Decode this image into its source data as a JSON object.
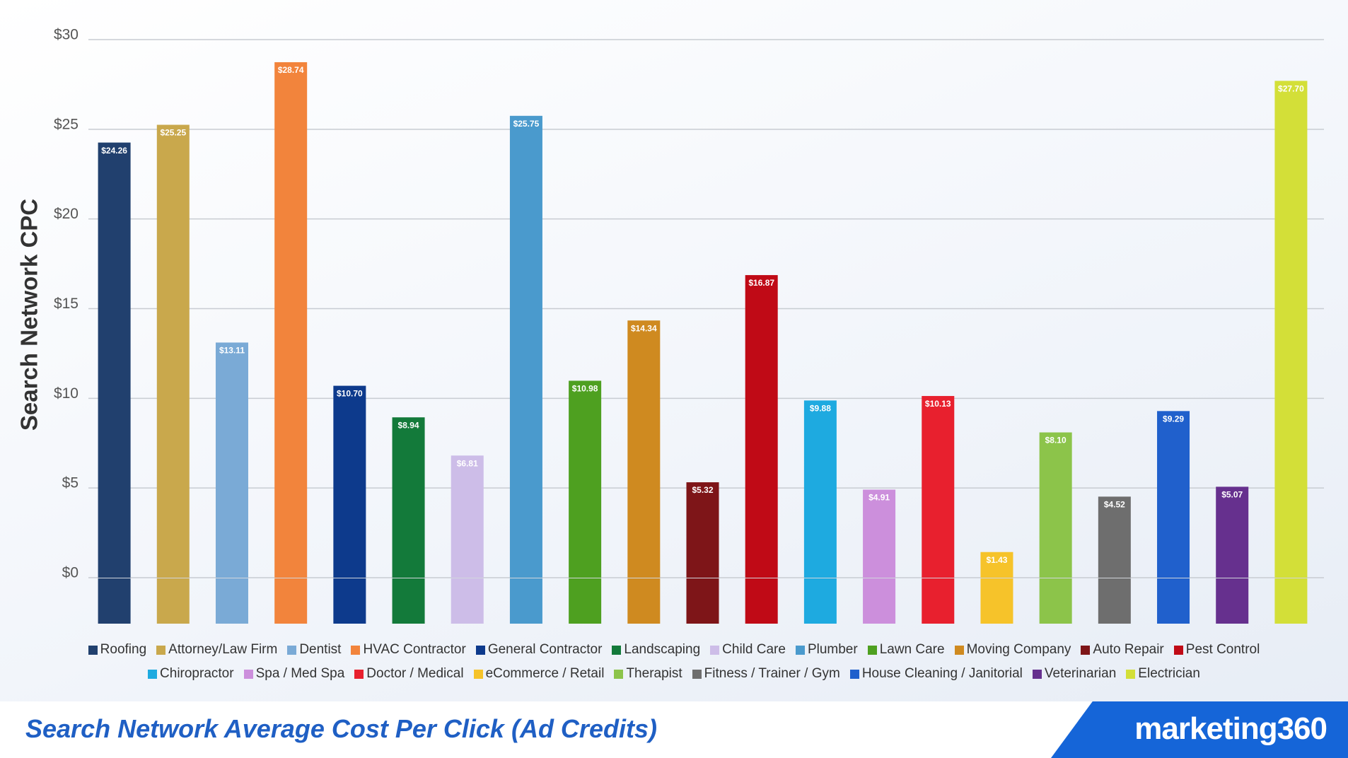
{
  "chart_data": {
    "type": "bar",
    "title": "Search Network Average Cost Per Click (Ad Credits)",
    "y_label": "Search Network CPC",
    "brand": "marketing360",
    "categories": [
      "Roofing",
      "Attorney/Law Firm",
      "Dentist",
      "HVAC Contractor",
      "General Contractor",
      "Landscaping",
      "Child Care",
      "Plumber",
      "Lawn Care",
      "Moving Company",
      "Auto Repair",
      "Pest Control",
      "Chiropractor",
      "Spa / Med Spa",
      "Doctor / Medical",
      "eCommerce / Retail",
      "Therapist",
      "Fitness / Trainer / Gym",
      "House Cleaning / Janitorial",
      "Veterinarian",
      "Electrician"
    ],
    "values": [
      24.26,
      25.25,
      13.11,
      28.74,
      10.7,
      8.94,
      6.81,
      25.75,
      10.98,
      14.34,
      5.32,
      16.87,
      9.88,
      4.91,
      10.13,
      1.43,
      8.1,
      4.52,
      9.29,
      5.07,
      27.7
    ],
    "value_labels": [
      "$24.26",
      "$25.25",
      "$13.11",
      "$28.74",
      "$10.70",
      "$8.94",
      "$6.81",
      "$25.75",
      "$10.98",
      "$14.34",
      "$5.32",
      "$16.87",
      "$9.88",
      "$4.91",
      "$10.13",
      "$1.43",
      "$8.10",
      "$4.52",
      "$9.29",
      "$5.07",
      "$27.70"
    ],
    "colors": [
      "#21406e",
      "#c9a84c",
      "#7aaad6",
      "#f2843c",
      "#0d3a8c",
      "#137a3a",
      "#cdbde8",
      "#4a9acd",
      "#4ea020",
      "#cf8a20",
      "#7e1518",
      "#c00a16",
      "#1eaae0",
      "#cc8fdc",
      "#e8202e",
      "#f6c32a",
      "#8cc44a",
      "#6e6e6e",
      "#2060cc",
      "#66308e",
      "#d3df38"
    ],
    "ylim": [
      0,
      30
    ],
    "yticks": [
      {
        "value": 0,
        "label": "$0"
      },
      {
        "value": 5,
        "label": "$5"
      },
      {
        "value": 10,
        "label": "$10"
      },
      {
        "value": 15,
        "label": "$15"
      },
      {
        "value": 20,
        "label": "$20"
      },
      {
        "value": 25,
        "label": "$25"
      },
      {
        "value": 30,
        "label": "$30"
      }
    ],
    "grid": true
  }
}
